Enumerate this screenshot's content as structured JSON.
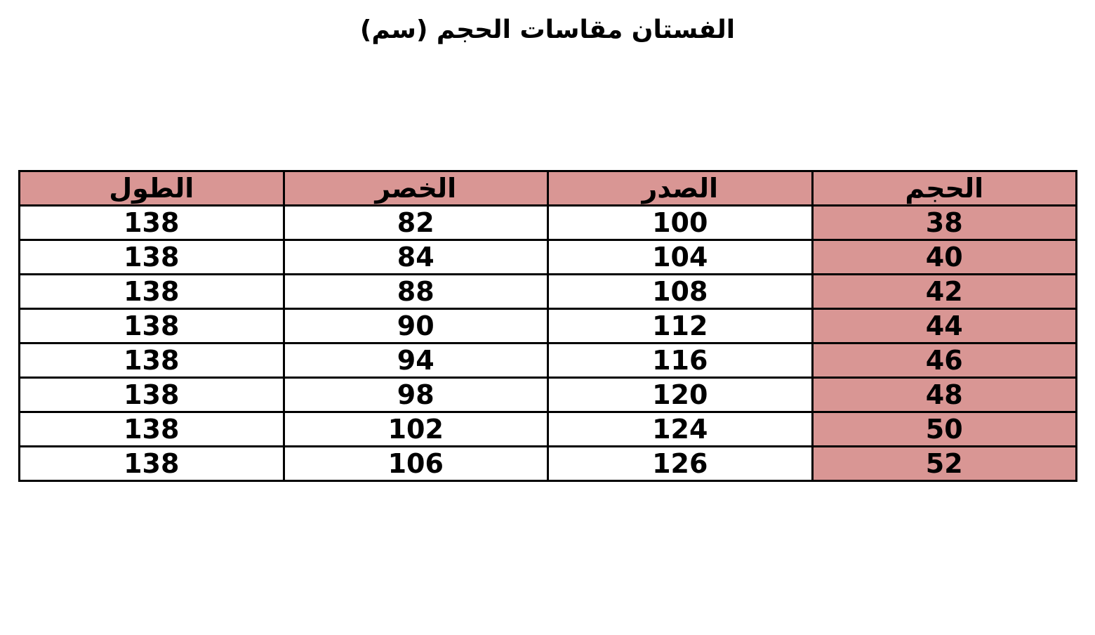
{
  "title": "الفستان مقاسات الحجم (سم)",
  "colors": {
    "accent": "#d99694",
    "border": "#000000"
  },
  "table": {
    "headers": [
      "الحجم",
      "الصدر",
      "الخصر",
      "الطول"
    ],
    "rows": [
      [
        "38",
        "100",
        "82",
        "138"
      ],
      [
        "40",
        "104",
        "84",
        "138"
      ],
      [
        "42",
        "108",
        "88",
        "138"
      ],
      [
        "44",
        "112",
        "90",
        "138"
      ],
      [
        "46",
        "116",
        "94",
        "138"
      ],
      [
        "48",
        "120",
        "98",
        "138"
      ],
      [
        "50",
        "124",
        "102",
        "138"
      ],
      [
        "52",
        "126",
        "106",
        "138"
      ]
    ]
  }
}
